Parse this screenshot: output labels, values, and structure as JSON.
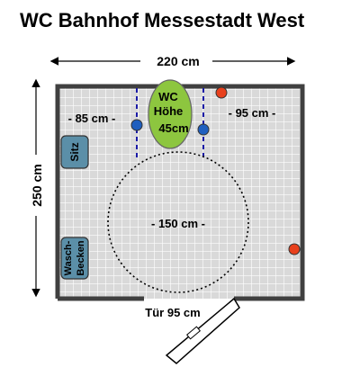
{
  "title": "WC Bahnhof Messestadt West",
  "dimensions": {
    "width_label": "220 cm",
    "height_label": "250 cm",
    "left_gap_label": "- 85 cm -",
    "right_gap_label": "- 95 cm -",
    "turning_circle_label": "- 150 cm -",
    "door_label": "Tür 95 cm"
  },
  "toilet": {
    "line1": "WC",
    "line2": "Höhe",
    "line3": "45cm"
  },
  "fixtures": {
    "seat_label": "Sitz",
    "sink_line1": "Wasch-",
    "sink_line2": "Becken"
  },
  "colors": {
    "wall": "#404040",
    "floor_tile": "#d9d9d9",
    "floor_grid": "#ffffff",
    "toilet": "#8dc63f",
    "fixture": "#5b8fa8",
    "grab_bar_marker": "#1f5fbf",
    "red_marker": "#e8401c",
    "dashed_line": "#1a1aa6"
  }
}
